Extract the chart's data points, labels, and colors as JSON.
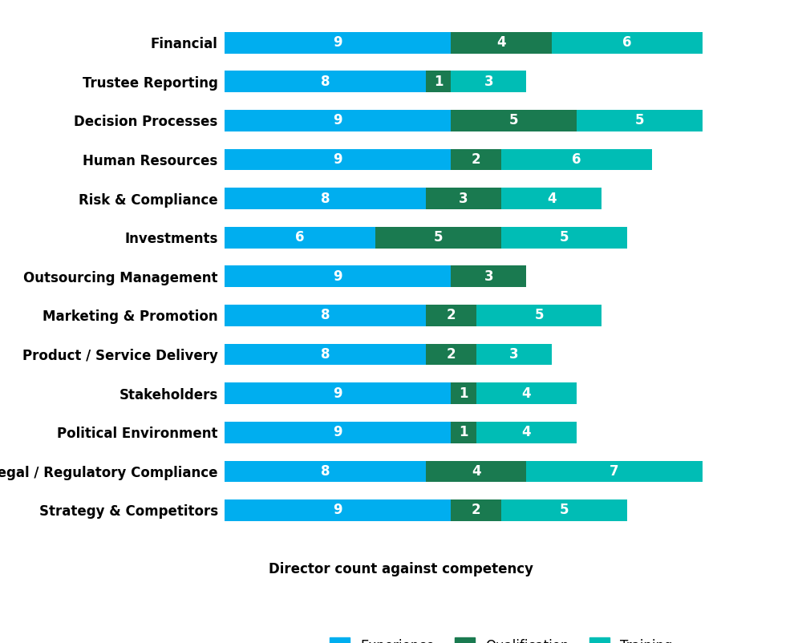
{
  "categories": [
    "Financial",
    "Trustee Reporting",
    "Decision Processes",
    "Human Resources",
    "Risk & Compliance",
    "Investments",
    "Outsourcing Management",
    "Marketing & Promotion",
    "Product / Service Delivery",
    "Stakeholders",
    "Political Environment",
    "Legal / Regulatory Compliance",
    "Strategy & Competitors"
  ],
  "experience": [
    9,
    8,
    9,
    9,
    8,
    6,
    9,
    8,
    8,
    9,
    9,
    8,
    9
  ],
  "qualification": [
    4,
    1,
    5,
    2,
    3,
    5,
    3,
    2,
    2,
    1,
    1,
    4,
    2
  ],
  "training": [
    6,
    3,
    5,
    6,
    4,
    5,
    0,
    5,
    3,
    4,
    4,
    7,
    5
  ],
  "color_experience": "#00AEEF",
  "color_qualification": "#1A7A50",
  "color_training": "#00BDB5",
  "legend_title": "Director count against competency",
  "background_color": "#FFFFFF",
  "bar_height": 0.55,
  "xlim": 22,
  "label_fontsize": 12,
  "value_fontsize": 12
}
